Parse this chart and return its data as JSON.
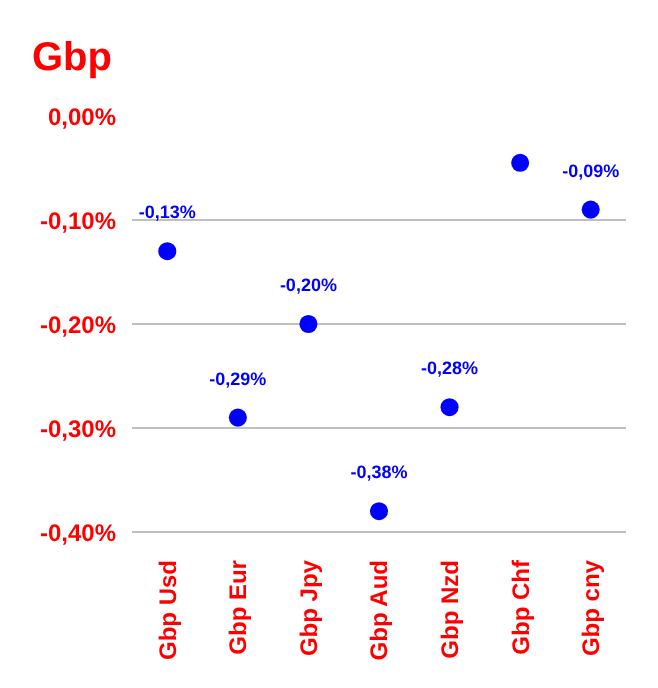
{
  "chart_data": {
    "type": "scatter",
    "title": "Gbp",
    "categories": [
      "Gbp Usd",
      "Gbp Eur",
      "Gbp Jpy",
      "Gbp Aud",
      "Gbp Nzd",
      "Gbp Chf",
      "Gbp cny"
    ],
    "series": [
      {
        "color": "#0000ff",
        "values": [
          -0.13,
          -0.29,
          -0.2,
          -0.38,
          -0.28,
          -0.045,
          -0.09
        ],
        "value_labels": [
          "-0,13%",
          "-0,29%",
          "-0,20%",
          "-0,38%",
          "-0,28%",
          null,
          "-0,09%"
        ]
      }
    ],
    "ylim": [
      -0.4,
      0
    ],
    "yticks": [
      {
        "value": -0.4,
        "label": "-0,40%"
      },
      {
        "value": -0.3,
        "label": "-0,30%"
      },
      {
        "value": -0.2,
        "label": "-0,20%"
      },
      {
        "value": -0.1,
        "label": "-0,10%"
      },
      {
        "value": 0,
        "label": "0,00%"
      }
    ],
    "grid": "y",
    "marker": "circle"
  }
}
